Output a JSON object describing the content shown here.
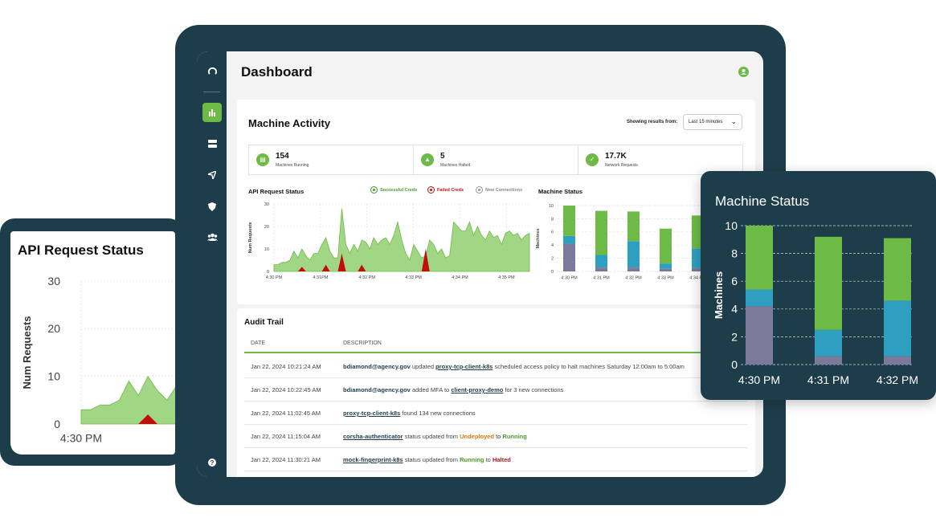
{
  "page": {
    "title": "Dashboard"
  },
  "sidebar": {
    "items": [
      "logo-icon",
      "chart-icon",
      "server-icon",
      "send-icon",
      "shield-icon",
      "users-icon",
      "help-icon"
    ],
    "active": "chart-icon"
  },
  "machine_activity": {
    "title": "Machine Activity",
    "showing_label": "Showing results from:",
    "range_value": "Last 15 minutes",
    "stats": [
      {
        "value": "154",
        "label": "Machines Running",
        "icon": "server-icon"
      },
      {
        "value": "5",
        "label": "Machines Halted",
        "icon": "warning-icon"
      },
      {
        "value": "17.7K",
        "label": "Network Requests",
        "icon": "check-icon"
      }
    ]
  },
  "api_chart": {
    "title": "API Request Status",
    "legend": [
      "Successful Creds",
      "Failed Creds",
      "New Connections"
    ]
  },
  "machine_chart": {
    "title": "Machine Status"
  },
  "audit": {
    "title": "Audit Trail",
    "col_date": "DATE",
    "col_desc": "DESCRIPTION",
    "rows": [
      {
        "date": "Jan 22, 2024 10:21:24 AM",
        "user": "bdiamond@agency.gov",
        "t1": " updated ",
        "target": "proxy-tcp-client-k8s",
        "t2": " scheduled access policy to halt machines Saturday 12:00am to 5:00am"
      },
      {
        "date": "Jan 22, 2024 10:22:45 AM",
        "user": "bdiamond@agency.gov",
        "t1": " added MFA to ",
        "target": "client-proxy-demo",
        "t2": " for 3 new connections"
      },
      {
        "date": "Jan 22, 2024 11:02:45 AM",
        "target": "proxy-tcp-client-k8s",
        "t2": " found 134 new connections"
      },
      {
        "date": "Jan 22, 2024 11:15:04 AM",
        "target": " corsha-authenticator",
        "t1": " status updated from ",
        "from": "Undeployed",
        "mid": " to ",
        "to": "Running"
      },
      {
        "date": "Jan 22, 2024 11:30:21 AM",
        "target": "mock-fingerprint-k8s",
        "t1": " status updated from ",
        "from": "Running",
        "mid": " to ",
        "to": "Halted"
      }
    ]
  },
  "chart_data": [
    {
      "type": "area",
      "title": "API Request Status",
      "ylabel": "Num Requests",
      "ylim": [
        0,
        30
      ],
      "yticks": [
        "30",
        "20",
        "10",
        "0"
      ],
      "xticks": [
        "4:30 PM",
        "4:31PM",
        "4:32 PM",
        "4:33 PM",
        "4:34 PM",
        "4:35 PM"
      ],
      "series": [
        {
          "name": "Successful Creds",
          "color": "#8fcf6e",
          "values": [
            3,
            3,
            4,
            4,
            5,
            9,
            6,
            10,
            7,
            5,
            8,
            8,
            12,
            15,
            9,
            6,
            6,
            28,
            12,
            8,
            12,
            9,
            14,
            13,
            10,
            15,
            12,
            14,
            15,
            12,
            16,
            22,
            14,
            8,
            5,
            12,
            9,
            6,
            7,
            14,
            12,
            8,
            10,
            6,
            7,
            22,
            20,
            18,
            18,
            22,
            16,
            20,
            16,
            14,
            18,
            15,
            16,
            12,
            17,
            18,
            16,
            17,
            14,
            16,
            17
          ]
        },
        {
          "name": "Failed Creds",
          "color": "#c00d0d",
          "values": [
            0,
            0,
            0,
            0,
            0,
            0,
            0,
            2,
            0,
            0,
            0,
            0,
            0,
            3,
            0,
            0,
            0,
            8,
            0,
            0,
            0,
            0,
            3,
            0,
            0,
            0,
            0,
            0,
            0,
            0,
            0,
            0,
            0,
            0,
            0,
            0,
            0,
            0,
            10,
            0,
            0,
            0,
            0,
            0,
            0,
            0,
            0,
            0,
            0,
            0,
            0,
            0,
            0,
            0,
            0,
            0,
            0,
            0,
            0,
            0,
            0,
            0,
            0,
            0,
            0
          ]
        }
      ]
    },
    {
      "type": "bar",
      "title": "Machine Status",
      "ylabel": "Machines",
      "ylim": [
        0,
        10
      ],
      "yticks": [
        "10",
        "8",
        "6",
        "4",
        "2",
        "0"
      ],
      "categories": [
        "4:30 PM",
        "4:31 PM",
        "4:32 PM",
        "4:33 PM",
        "4:34 PM"
      ],
      "series": [
        {
          "color": "#7b7a9b",
          "values": [
            4.2,
            0.6,
            0.6,
            0.4,
            0.5
          ]
        },
        {
          "color": "#2f9fc1",
          "values": [
            1.2,
            1.9,
            4.0,
            0.8,
            3.0
          ]
        },
        {
          "color": "#6dbb46",
          "values": [
            4.6,
            6.7,
            4.5,
            5.3,
            5.0
          ]
        }
      ]
    }
  ]
}
